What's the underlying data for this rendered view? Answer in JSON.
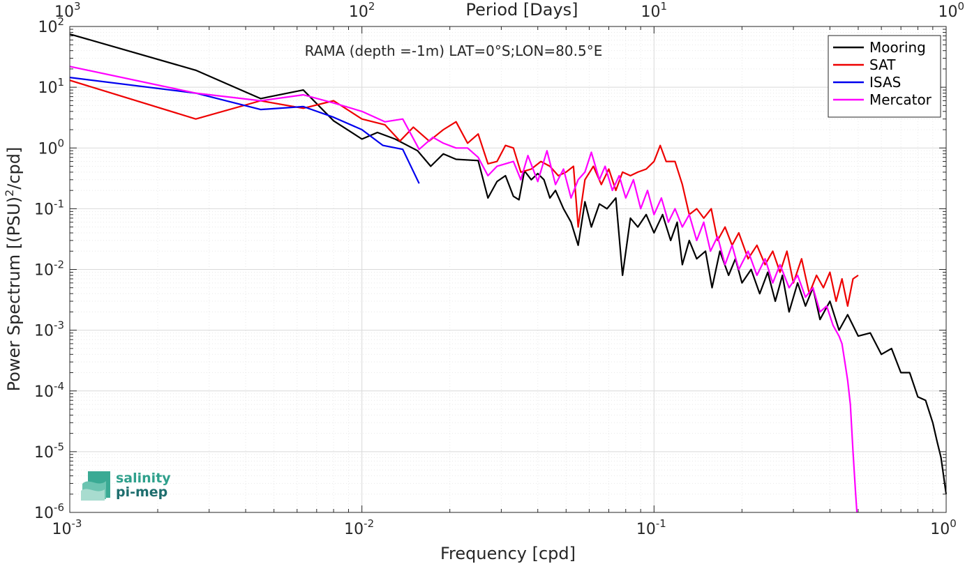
{
  "chart_data": {
    "type": "line",
    "title": "",
    "annotation": "RAMA (depth =-1m) LAT=0°S;LON=80.5°E",
    "xlabel": "Frequency [cpd]",
    "ylabel": "Power Spectrum [(PSU)^2/cpd]",
    "top_xlabel": "Period [Days]",
    "x_scale": "log",
    "y_scale": "log",
    "xlim": [
      0.001,
      1
    ],
    "ylim": [
      1e-06,
      100
    ],
    "grid": true,
    "legend_position": "top-right",
    "x_ticks": [
      "10",
      "10",
      "10",
      "10"
    ],
    "x_tick_exponents": [
      "-3",
      "-2",
      "-1",
      "0"
    ],
    "top_ticks": [
      "10",
      "10",
      "10",
      "10"
    ],
    "top_tick_exponents": [
      "3",
      "2",
      "1",
      "0"
    ],
    "y_ticks": [
      "10",
      "10",
      "10",
      "10",
      "10",
      "10",
      "10",
      "10",
      "10"
    ],
    "y_tick_exponents": [
      "-6",
      "-5",
      "-4",
      "-3",
      "-2",
      "-1",
      "0",
      "1",
      "2"
    ],
    "series": [
      {
        "name": "Mooring",
        "color": "#000000",
        "points": [
          [
            0.001,
            75
          ],
          [
            0.0027,
            19
          ],
          [
            0.0045,
            6.5
          ],
          [
            0.0063,
            9
          ],
          [
            0.008,
            2.8
          ],
          [
            0.01,
            1.4
          ],
          [
            0.0113,
            1.8
          ],
          [
            0.013,
            1.4
          ],
          [
            0.0155,
            0.9
          ],
          [
            0.0172,
            0.5
          ],
          [
            0.019,
            0.8
          ],
          [
            0.021,
            0.65
          ],
          [
            0.025,
            0.62
          ],
          [
            0.027,
            0.15
          ],
          [
            0.029,
            0.28
          ],
          [
            0.031,
            0.35
          ],
          [
            0.033,
            0.16
          ],
          [
            0.0345,
            0.14
          ],
          [
            0.036,
            0.42
          ],
          [
            0.038,
            0.3
          ],
          [
            0.04,
            0.38
          ],
          [
            0.042,
            0.3
          ],
          [
            0.044,
            0.15
          ],
          [
            0.046,
            0.2
          ],
          [
            0.049,
            0.1
          ],
          [
            0.052,
            0.06
          ],
          [
            0.055,
            0.025
          ],
          [
            0.058,
            0.13
          ],
          [
            0.061,
            0.05
          ],
          [
            0.065,
            0.12
          ],
          [
            0.069,
            0.1
          ],
          [
            0.074,
            0.15
          ],
          [
            0.078,
            0.008
          ],
          [
            0.083,
            0.07
          ],
          [
            0.088,
            0.05
          ],
          [
            0.094,
            0.08
          ],
          [
            0.1,
            0.04
          ],
          [
            0.107,
            0.08
          ],
          [
            0.114,
            0.03
          ],
          [
            0.12,
            0.06
          ],
          [
            0.125,
            0.012
          ],
          [
            0.132,
            0.03
          ],
          [
            0.14,
            0.015
          ],
          [
            0.15,
            0.02
          ],
          [
            0.158,
            0.005
          ],
          [
            0.168,
            0.02
          ],
          [
            0.18,
            0.008
          ],
          [
            0.19,
            0.015
          ],
          [
            0.2,
            0.006
          ],
          [
            0.215,
            0.01
          ],
          [
            0.23,
            0.004
          ],
          [
            0.245,
            0.009
          ],
          [
            0.26,
            0.003
          ],
          [
            0.275,
            0.008
          ],
          [
            0.29,
            0.002
          ],
          [
            0.31,
            0.006
          ],
          [
            0.33,
            0.0025
          ],
          [
            0.35,
            0.005
          ],
          [
            0.37,
            0.0015
          ],
          [
            0.4,
            0.003
          ],
          [
            0.43,
            0.001
          ],
          [
            0.46,
            0.0018
          ],
          [
            0.5,
            0.0008
          ],
          [
            0.55,
            0.0009
          ],
          [
            0.6,
            0.0004
          ],
          [
            0.65,
            0.0005
          ],
          [
            0.7,
            0.0002
          ],
          [
            0.75,
            0.0002
          ],
          [
            0.8,
            8e-05
          ],
          [
            0.85,
            7e-05
          ],
          [
            0.9,
            3e-05
          ],
          [
            0.93,
            1.5e-05
          ],
          [
            0.96,
            8e-06
          ],
          [
            1.0,
            2e-06
          ]
        ]
      },
      {
        "name": "SAT",
        "color": "#ee0000",
        "points": [
          [
            0.001,
            13
          ],
          [
            0.0027,
            3
          ],
          [
            0.0045,
            6
          ],
          [
            0.0063,
            4.5
          ],
          [
            0.008,
            6
          ],
          [
            0.01,
            3
          ],
          [
            0.012,
            2.4
          ],
          [
            0.0135,
            1.3
          ],
          [
            0.015,
            2.2
          ],
          [
            0.017,
            1.3
          ],
          [
            0.019,
            2
          ],
          [
            0.021,
            2.7
          ],
          [
            0.023,
            1.2
          ],
          [
            0.025,
            1.7
          ],
          [
            0.027,
            0.55
          ],
          [
            0.029,
            0.6
          ],
          [
            0.031,
            1.1
          ],
          [
            0.033,
            1
          ],
          [
            0.035,
            0.4
          ],
          [
            0.038,
            0.45
          ],
          [
            0.041,
            0.6
          ],
          [
            0.044,
            0.5
          ],
          [
            0.047,
            0.35
          ],
          [
            0.05,
            0.4
          ],
          [
            0.053,
            0.5
          ],
          [
            0.055,
            0.05
          ],
          [
            0.058,
            0.3
          ],
          [
            0.062,
            0.5
          ],
          [
            0.066,
            0.25
          ],
          [
            0.07,
            0.45
          ],
          [
            0.074,
            0.2
          ],
          [
            0.078,
            0.4
          ],
          [
            0.083,
            0.35
          ],
          [
            0.088,
            0.4
          ],
          [
            0.094,
            0.45
          ],
          [
            0.1,
            0.6
          ],
          [
            0.105,
            1.1
          ],
          [
            0.11,
            0.6
          ],
          [
            0.118,
            0.6
          ],
          [
            0.125,
            0.25
          ],
          [
            0.132,
            0.08
          ],
          [
            0.14,
            0.1
          ],
          [
            0.148,
            0.07
          ],
          [
            0.157,
            0.1
          ],
          [
            0.165,
            0.03
          ],
          [
            0.175,
            0.05
          ],
          [
            0.185,
            0.025
          ],
          [
            0.195,
            0.04
          ],
          [
            0.21,
            0.015
          ],
          [
            0.225,
            0.025
          ],
          [
            0.24,
            0.012
          ],
          [
            0.255,
            0.02
          ],
          [
            0.27,
            0.009
          ],
          [
            0.285,
            0.02
          ],
          [
            0.3,
            0.006
          ],
          [
            0.32,
            0.015
          ],
          [
            0.34,
            0.004
          ],
          [
            0.36,
            0.008
          ],
          [
            0.38,
            0.005
          ],
          [
            0.4,
            0.009
          ],
          [
            0.42,
            0.003
          ],
          [
            0.44,
            0.007
          ],
          [
            0.46,
            0.0025
          ],
          [
            0.48,
            0.007
          ],
          [
            0.5,
            0.008
          ]
        ]
      },
      {
        "name": "ISAS",
        "color": "#0000ee",
        "points": [
          [
            0.001,
            14.5
          ],
          [
            0.0027,
            8
          ],
          [
            0.0045,
            4.3
          ],
          [
            0.0063,
            4.8
          ],
          [
            0.008,
            3.2
          ],
          [
            0.01,
            2
          ],
          [
            0.0118,
            1.1
          ],
          [
            0.0138,
            0.95
          ],
          [
            0.0157,
            0.26
          ]
        ]
      },
      {
        "name": "Mercator",
        "color": "#ff00ff",
        "points": [
          [
            0.001,
            22
          ],
          [
            0.0027,
            8
          ],
          [
            0.0045,
            6
          ],
          [
            0.0063,
            7.5
          ],
          [
            0.008,
            5.5
          ],
          [
            0.01,
            4
          ],
          [
            0.012,
            2.7
          ],
          [
            0.0138,
            3
          ],
          [
            0.0157,
            0.95
          ],
          [
            0.0175,
            1.5
          ],
          [
            0.019,
            1.2
          ],
          [
            0.021,
            1
          ],
          [
            0.023,
            1
          ],
          [
            0.025,
            0.7
          ],
          [
            0.027,
            0.35
          ],
          [
            0.029,
            0.5
          ],
          [
            0.031,
            0.55
          ],
          [
            0.033,
            0.6
          ],
          [
            0.035,
            0.3
          ],
          [
            0.037,
            0.75
          ],
          [
            0.04,
            0.28
          ],
          [
            0.043,
            0.9
          ],
          [
            0.046,
            0.25
          ],
          [
            0.049,
            0.45
          ],
          [
            0.052,
            0.15
          ],
          [
            0.055,
            0.3
          ],
          [
            0.058,
            0.4
          ],
          [
            0.061,
            0.85
          ],
          [
            0.065,
            0.3
          ],
          [
            0.068,
            0.5
          ],
          [
            0.072,
            0.2
          ],
          [
            0.076,
            0.35
          ],
          [
            0.08,
            0.15
          ],
          [
            0.085,
            0.3
          ],
          [
            0.09,
            0.1
          ],
          [
            0.095,
            0.2
          ],
          [
            0.1,
            0.08
          ],
          [
            0.106,
            0.15
          ],
          [
            0.112,
            0.06
          ],
          [
            0.118,
            0.1
          ],
          [
            0.125,
            0.05
          ],
          [
            0.132,
            0.08
          ],
          [
            0.14,
            0.03
          ],
          [
            0.148,
            0.06
          ],
          [
            0.156,
            0.02
          ],
          [
            0.165,
            0.035
          ],
          [
            0.175,
            0.012
          ],
          [
            0.185,
            0.025
          ],
          [
            0.195,
            0.01
          ],
          [
            0.21,
            0.02
          ],
          [
            0.225,
            0.008
          ],
          [
            0.24,
            0.015
          ],
          [
            0.255,
            0.006
          ],
          [
            0.27,
            0.012
          ],
          [
            0.29,
            0.005
          ],
          [
            0.31,
            0.008
          ],
          [
            0.33,
            0.0035
          ],
          [
            0.35,
            0.005
          ],
          [
            0.37,
            0.002
          ],
          [
            0.39,
            0.0025
          ],
          [
            0.41,
            0.0012
          ],
          [
            0.43,
            0.0008
          ],
          [
            0.44,
            0.0006
          ],
          [
            0.45,
            0.0003
          ],
          [
            0.46,
            0.00015
          ],
          [
            0.47,
            6e-05
          ],
          [
            0.48,
            1e-05
          ],
          [
            0.49,
            2e-06
          ],
          [
            0.495,
            1e-06
          ]
        ]
      }
    ]
  },
  "logo": {
    "line1": "salinity",
    "line2": "pi-mep"
  }
}
